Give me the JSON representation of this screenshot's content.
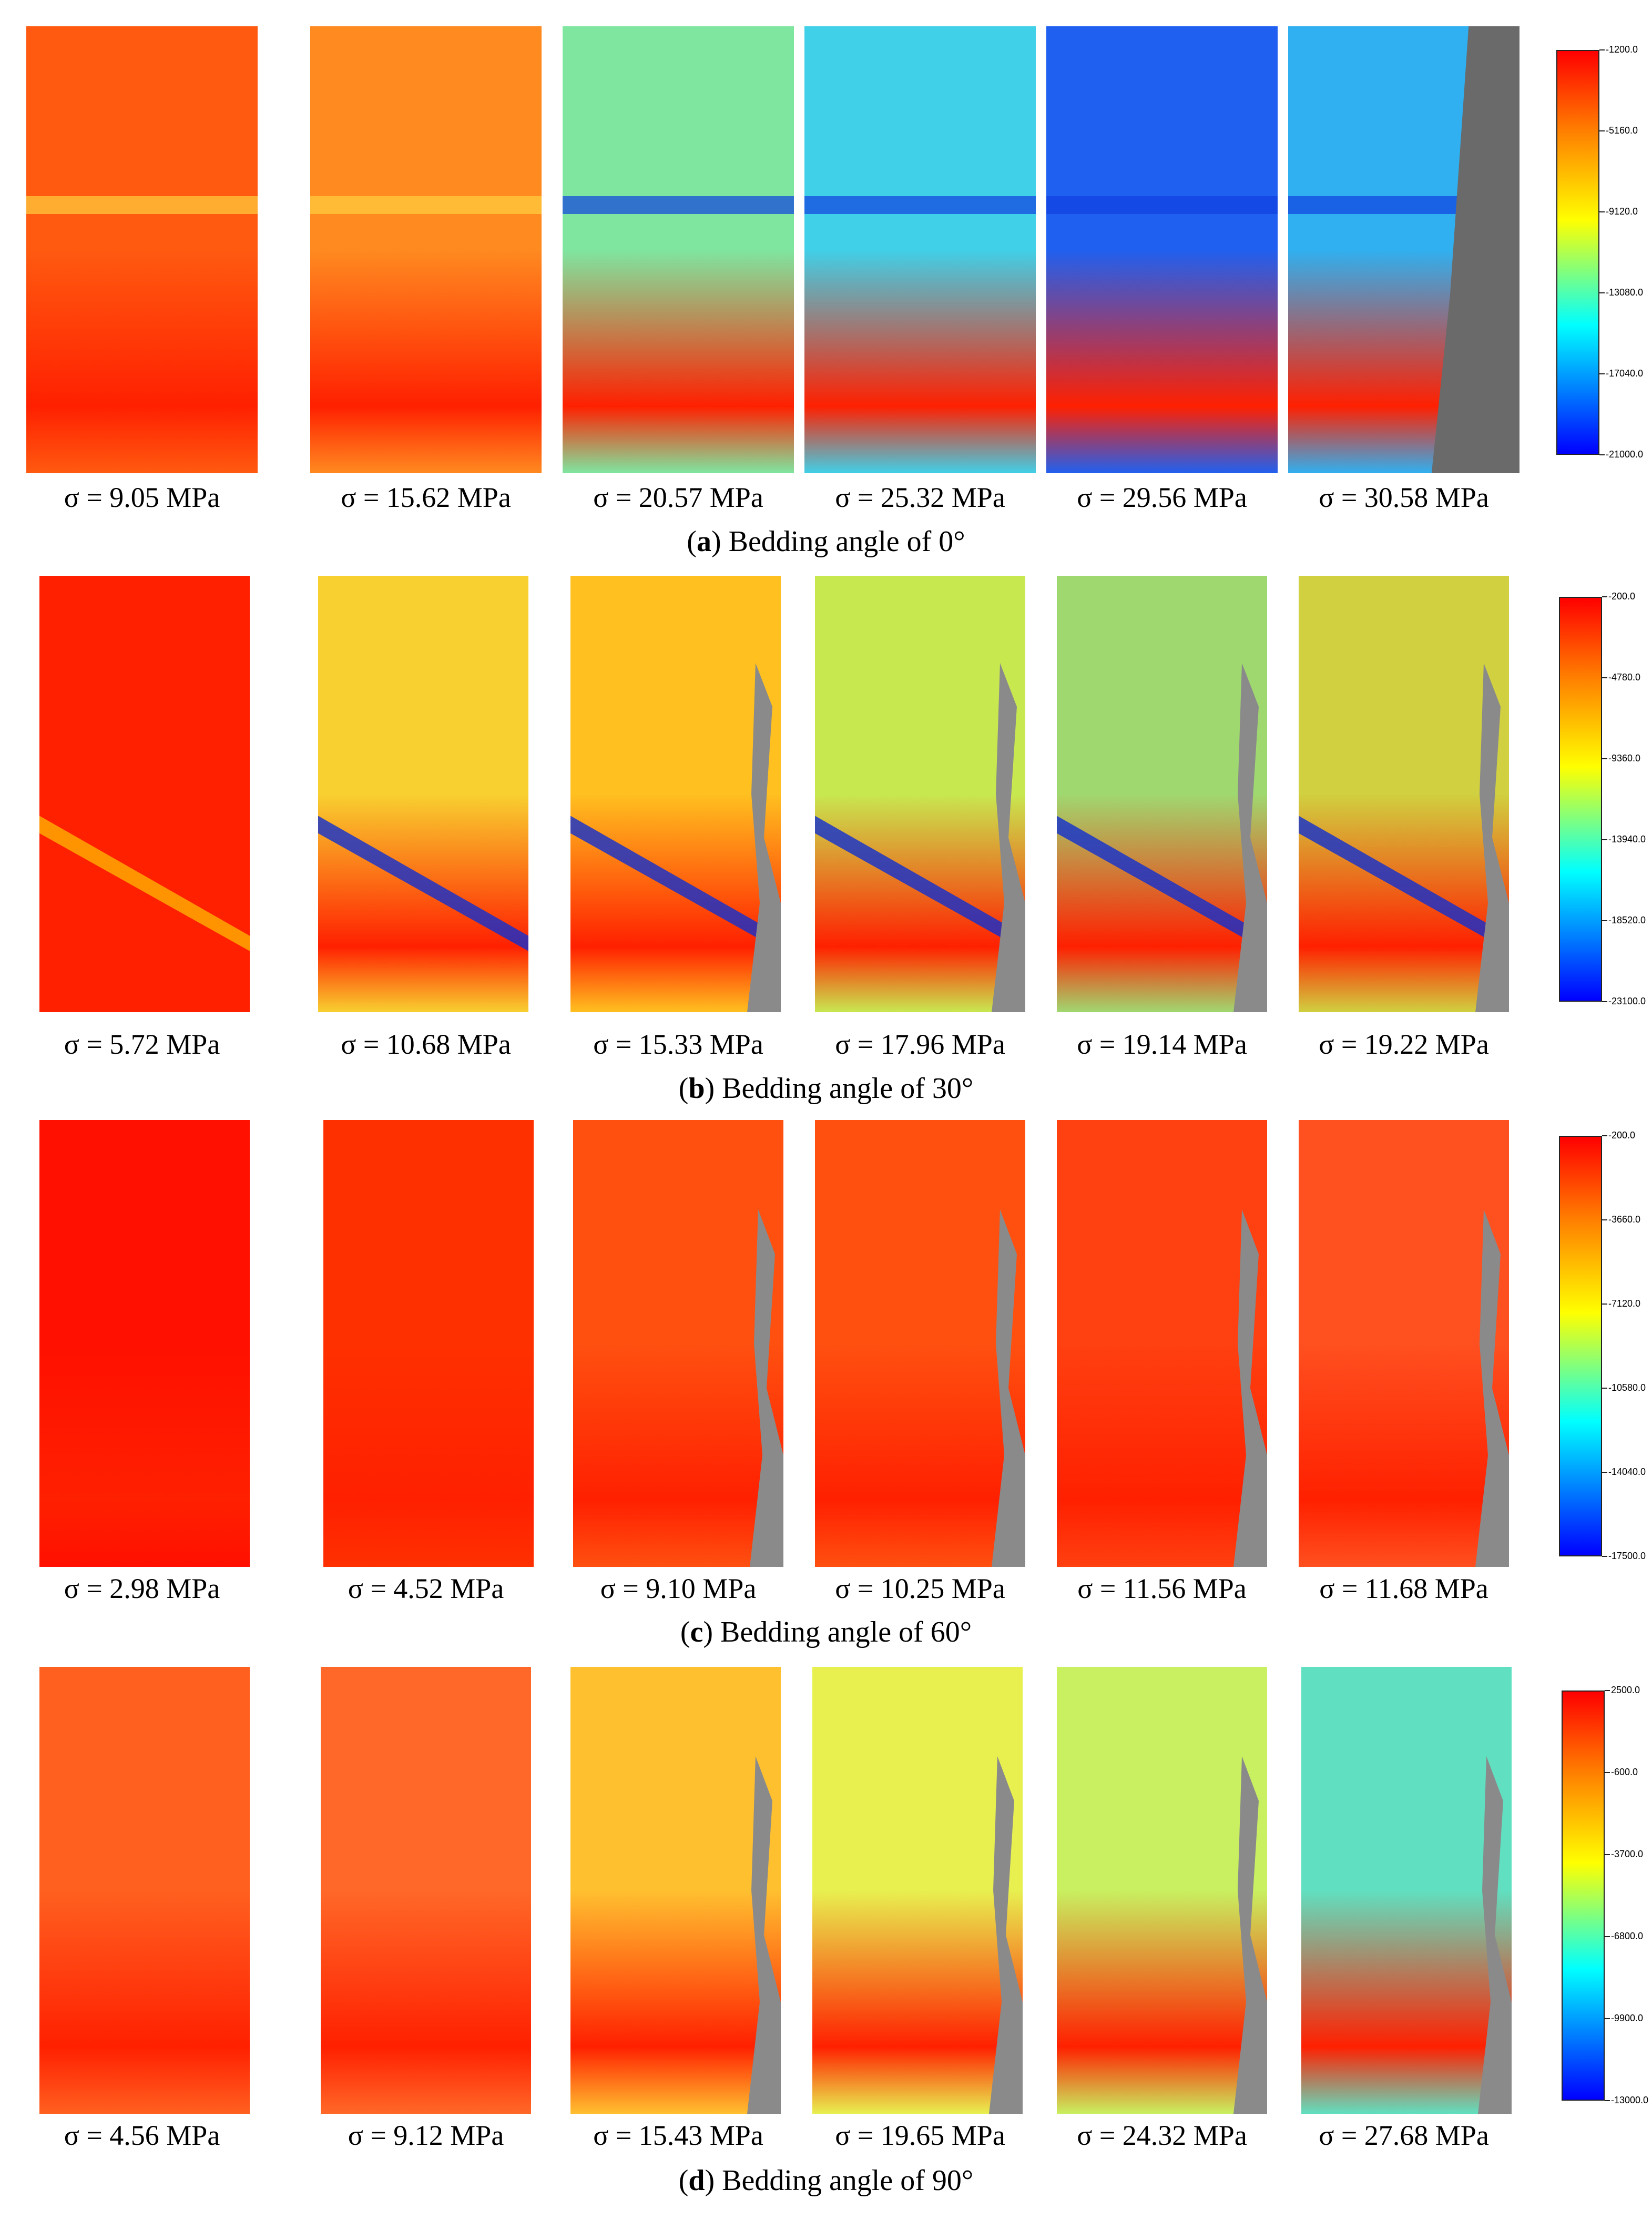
{
  "panels": [
    {
      "caption_letter": "a",
      "caption_text": ") Bedding angle of 0°",
      "caption_open": "(",
      "labels": [
        "σ = 9.05 MPa",
        "σ = 15.62 MPa",
        "σ = 20.57 MPa",
        "σ = 25.32 MPa",
        "σ = 29.56 MPa",
        "σ = 30.58 MPa"
      ],
      "scale": [
        "-1200.0",
        "-5160.0",
        "-9120.0",
        "-13080.0",
        "-17040.0",
        "-21000.0"
      ],
      "map_colors": [
        "#ff5a10",
        "#ff8a20",
        "#7fe6a0",
        "#40d0e8",
        "#2060f0",
        "#30b0f0"
      ]
    },
    {
      "caption_letter": "b",
      "caption_text": ") Bedding angle of 30°",
      "caption_open": "(",
      "labels": [
        "σ = 5.72 MPa",
        "σ = 10.68 MPa",
        "σ = 15.33 MPa",
        "σ = 17.96 MPa",
        "σ = 19.14 MPa",
        "σ = 19.22 MPa"
      ],
      "scale": [
        "-200.0",
        "-4780.0",
        "-9360.0",
        "-13940.0",
        "-18520.0",
        "-23100.0"
      ],
      "map_colors": [
        "#ff2000",
        "#f8d030",
        "#ffc020",
        "#c8e850",
        "#a0d870",
        "#d0d040"
      ]
    },
    {
      "caption_letter": "c",
      "caption_text": ") Bedding angle of 60°",
      "caption_open": "(",
      "labels": [
        "σ = 2.98 MPa",
        "σ = 4.52 MPa",
        "σ = 9.10 MPa",
        "σ = 10.25 MPa",
        "σ = 11.56 MPa",
        "σ = 11.68 MPa"
      ],
      "scale": [
        "-200.0",
        "-3660.0",
        "-7120.0",
        "-10580.0",
        "-14040.0",
        "-17500.0"
      ],
      "map_colors": [
        "#ff1000",
        "#ff3000",
        "#ff5010",
        "#ff5010",
        "#ff4010",
        "#ff5020"
      ]
    },
    {
      "caption_letter": "d",
      "caption_text": ") Bedding angle of 90°",
      "caption_open": "(",
      "labels": [
        "σ = 4.56 MPa",
        "σ = 9.12 MPa",
        "σ = 15.43 MPa",
        "σ = 19.65 MPa",
        "σ = 24.32 MPa",
        "σ = 27.68 MPa"
      ],
      "scale": [
        "2500.0",
        "-600.0",
        "-3700.0",
        "-6800.0",
        "-9900.0",
        "-13000.0"
      ],
      "map_colors": [
        "#ff6020",
        "#ff6828",
        "#ffc030",
        "#e8f050",
        "#c8f060",
        "#60e0c0"
      ]
    }
  ]
}
